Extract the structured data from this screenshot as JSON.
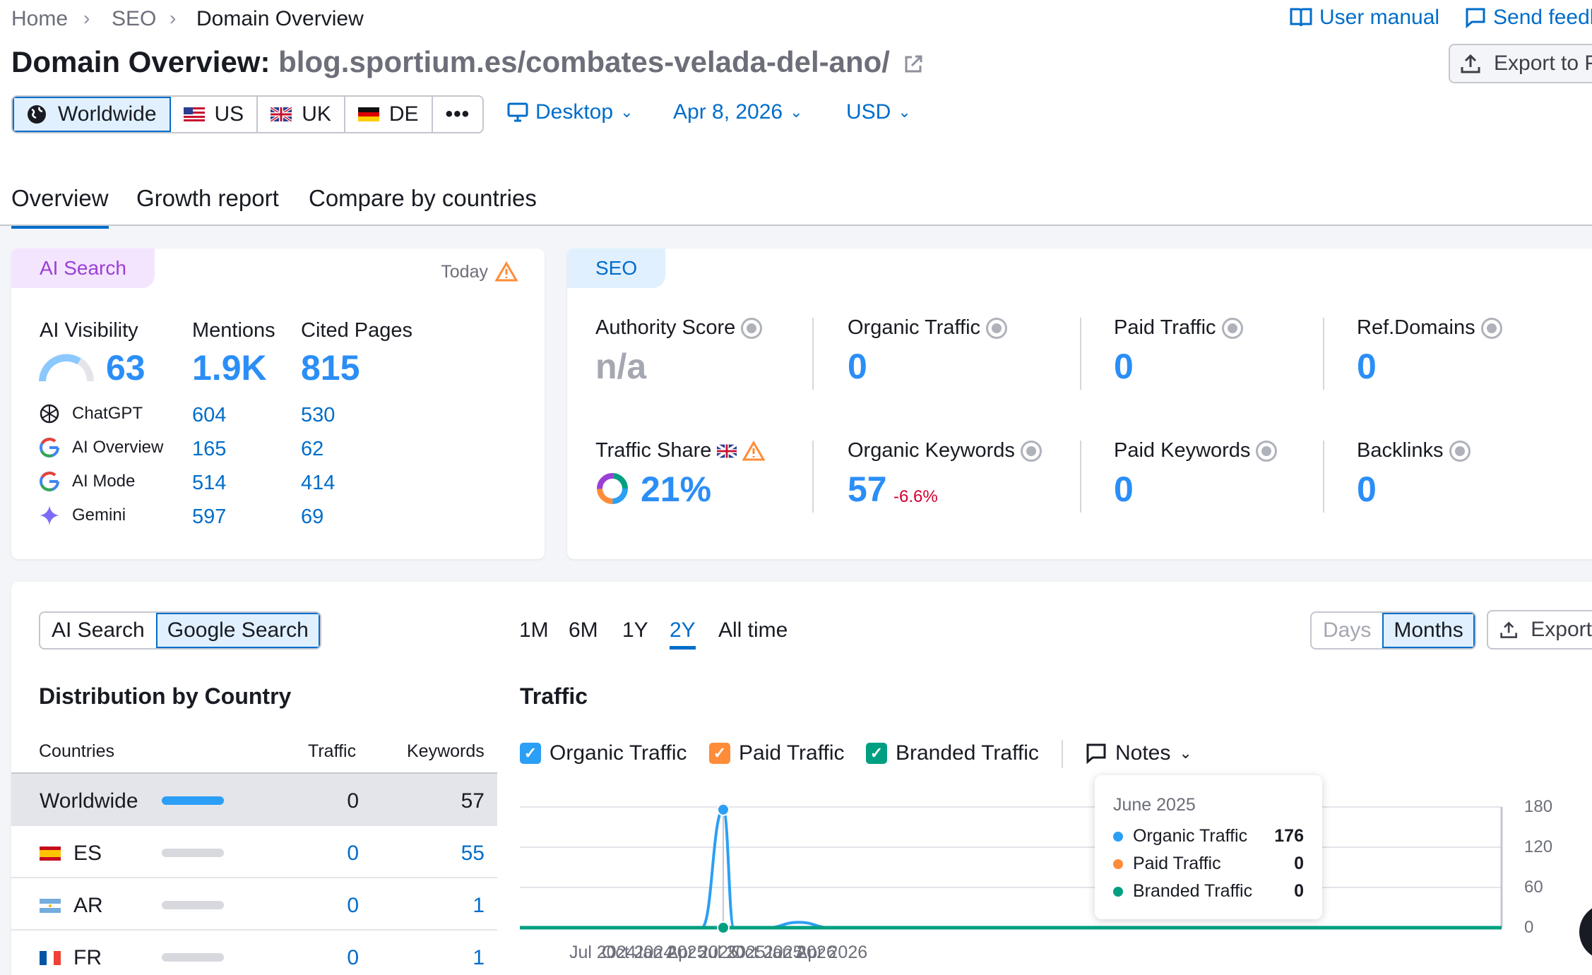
{
  "breadcrumb": [
    "Home",
    "SEO",
    "Domain Overview"
  ],
  "header_links": {
    "user_manual": "User manual",
    "send_feedback": "Send feedb"
  },
  "export_button": "Export to P",
  "title": {
    "prefix": "Domain Overview:",
    "domain": "blog.sportium.es/combates-velada-del-ano/"
  },
  "regions": [
    "Worldwide",
    "US",
    "UK",
    "DE"
  ],
  "selectors": {
    "device": "Desktop",
    "date": "Apr 8, 2026",
    "currency": "USD"
  },
  "tabs": [
    "Overview",
    "Growth report",
    "Compare by countries"
  ],
  "ai_card": {
    "label": "AI Search",
    "today": "Today",
    "metric_titles": [
      "AI Visibility",
      "Mentions",
      "Cited Pages"
    ],
    "visibility": "63",
    "mentions": "1.9K",
    "cited_pages": "815",
    "platforms": [
      {
        "name": "ChatGPT",
        "mentions": "604",
        "cited": "530"
      },
      {
        "name": "AI Overview",
        "mentions": "165",
        "cited": "62"
      },
      {
        "name": "AI Mode",
        "mentions": "514",
        "cited": "414"
      },
      {
        "name": "Gemini",
        "mentions": "597",
        "cited": "69"
      }
    ]
  },
  "seo_card": {
    "label": "SEO",
    "authority_label": "Authority Score",
    "authority_value": "n/a",
    "organic_traffic_label": "Organic Traffic",
    "organic_traffic_value": "0",
    "paid_traffic_label": "Paid Traffic",
    "paid_traffic_value": "0",
    "ref_domains_label": "Ref.Domains",
    "ref_domains_value": "0",
    "traffic_share_label": "Traffic Share",
    "traffic_share_value": "21%",
    "organic_keywords_label": "Organic Keywords",
    "organic_keywords_value": "57",
    "organic_keywords_change": "-6.6%",
    "paid_keywords_label": "Paid Keywords",
    "paid_keywords_value": "0",
    "backlinks_label": "Backlinks",
    "backlinks_value": "0"
  },
  "source_toggle": [
    "AI Search",
    "Google Search"
  ],
  "periods": [
    "1M",
    "6M",
    "1Y",
    "2Y",
    "All time"
  ],
  "granularity": [
    "Days",
    "Months"
  ],
  "export_label": "Export",
  "distribution": {
    "title": "Distribution by Country",
    "headers": [
      "Countries",
      "Traffic",
      "Keywords"
    ],
    "rows": [
      {
        "country": "Worldwide",
        "traffic": "0",
        "keywords": "57"
      },
      {
        "country": "ES",
        "traffic": "0",
        "keywords": "55"
      },
      {
        "country": "AR",
        "traffic": "0",
        "keywords": "1"
      },
      {
        "country": "FR",
        "traffic": "0",
        "keywords": "1"
      }
    ]
  },
  "traffic_chart": {
    "title": "Traffic",
    "legend": [
      "Organic Traffic",
      "Paid Traffic",
      "Branded Traffic"
    ],
    "notes_label": "Notes",
    "colors": {
      "organic": "#2b9ff5",
      "paid": "#ff8c39",
      "branded": "#009f81"
    },
    "tooltip": {
      "title": "June 2025",
      "rows": [
        {
          "name": "Organic Traffic",
          "value": "176"
        },
        {
          "name": "Paid Traffic",
          "value": "0"
        },
        {
          "name": "Branded Traffic",
          "value": "0"
        }
      ]
    }
  },
  "chart_data": {
    "type": "line",
    "x": [
      "Jul 2024",
      "Oct 2024",
      "Jan 2025",
      "Apr 2025",
      "Jun 2025",
      "Jul 2025",
      "Oct 2025",
      "Jan 2026",
      "Apr 2026"
    ],
    "x_tick_labels": [
      "Jul 2024",
      "Oct 2024",
      "Jan 2025",
      "Apr 2025",
      "Jul 2025",
      "Oct 2025",
      "Jan 2026",
      "Apr 2026"
    ],
    "y_tick_labels": [
      "180",
      "120",
      "60",
      "0"
    ],
    "ylim": [
      0,
      180
    ],
    "series": [
      {
        "name": "Organic Traffic",
        "values": [
          0,
          0,
          0,
          0,
          176,
          0,
          0,
          8,
          0
        ]
      },
      {
        "name": "Paid Traffic",
        "values": [
          0,
          0,
          0,
          0,
          0,
          0,
          0,
          0,
          0
        ]
      },
      {
        "name": "Branded Traffic",
        "values": [
          0,
          0,
          0,
          0,
          0,
          0,
          0,
          0,
          0
        ]
      }
    ],
    "legend_position": "top-left",
    "grid": true
  }
}
